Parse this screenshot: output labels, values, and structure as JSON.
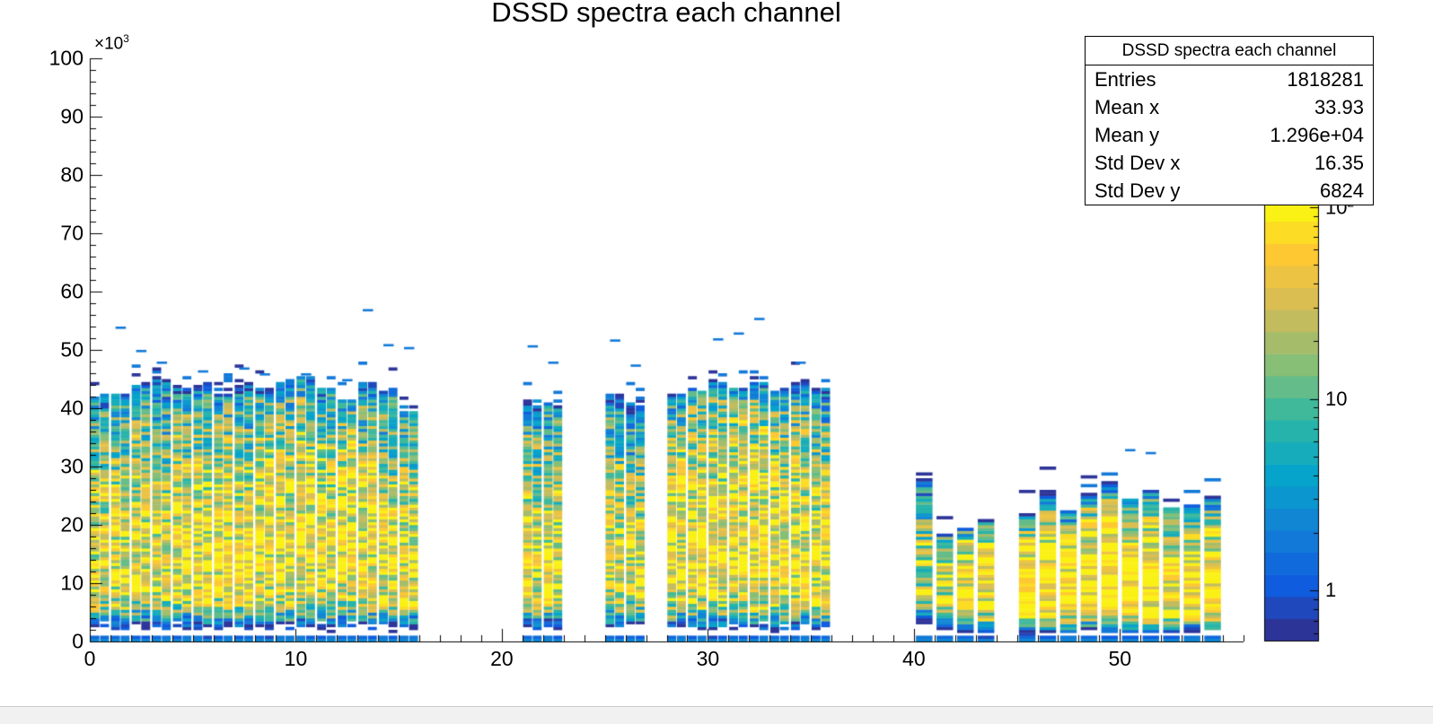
{
  "chart_data": {
    "type": "heatmap",
    "title": "DSSD spectra each channel",
    "xlabel": "",
    "ylabel": "",
    "x_axis": {
      "min": 0,
      "max": 56,
      "major_ticks": [
        0,
        10,
        20,
        30,
        40,
        50
      ],
      "minor_tick_step": 1
    },
    "y_axis": {
      "min": 0,
      "max": 100,
      "unit_exponent": {
        "base": "×10",
        "exp": "3"
      },
      "major_ticks": [
        0,
        10,
        20,
        30,
        40,
        50,
        60,
        70,
        80,
        90,
        100
      ],
      "minor_tick_step": 2
    },
    "z_axis": {
      "scale": "log",
      "min": 0.55,
      "max": 110,
      "ticks": [
        {
          "value": 1,
          "base": "1",
          "exp": ""
        },
        {
          "value": 10,
          "base": "10",
          "exp": ""
        },
        {
          "value": 100,
          "base": "10",
          "exp": "2"
        }
      ]
    },
    "palette": [
      "#352a87",
      "#0f5cde",
      "#1480d6",
      "#06a4ca",
      "#2eb7a4",
      "#87bf77",
      "#d1bb59",
      "#fec832",
      "#f9fb0e"
    ],
    "palette_levels": 20,
    "stats": {
      "name": "DSSD spectra each channel",
      "rows": [
        {
          "label": "Entries",
          "value": "1818281"
        },
        {
          "label": "Mean x",
          "value": "33.93"
        },
        {
          "label": "Mean y",
          "value": "1.296e+04"
        },
        {
          "label": "Std Dev x",
          "value": "16.35"
        },
        {
          "label": "Std Dev y",
          "value": "6824"
        }
      ]
    },
    "channels": [
      {
        "x": 0,
        "max": 42,
        "peak": 13,
        "amp": 48,
        "fall": 2.4,
        "low": 5,
        "out": []
      },
      {
        "x": 1,
        "max": 43,
        "peak": 13,
        "amp": 52,
        "fall": 2.4,
        "low": 5,
        "out": [
          54
        ]
      },
      {
        "x": 2,
        "max": 44,
        "peak": 14,
        "amp": 55,
        "fall": 2.4,
        "low": 5,
        "out": [
          50
        ]
      },
      {
        "x": 3,
        "max": 45,
        "peak": 13,
        "amp": 50,
        "fall": 2.4,
        "low": 5,
        "out": [
          48
        ]
      },
      {
        "x": 4,
        "max": 43,
        "peak": 14,
        "amp": 55,
        "fall": 2.4,
        "low": 5,
        "out": []
      },
      {
        "x": 5,
        "max": 44,
        "peak": 13,
        "amp": 58,
        "fall": 2.4,
        "low": 5,
        "out": [
          46.5
        ]
      },
      {
        "x": 6,
        "max": 42,
        "peak": 14,
        "amp": 60,
        "fall": 2.4,
        "low": 5,
        "out": []
      },
      {
        "x": 7,
        "max": 44,
        "peak": 13,
        "amp": 55,
        "fall": 2.4,
        "low": 4.5,
        "out": [
          47
        ]
      },
      {
        "x": 8,
        "max": 43,
        "peak": 15,
        "amp": 58,
        "fall": 2.4,
        "low": 5,
        "out": [
          46
        ]
      },
      {
        "x": 9,
        "max": 44,
        "peak": 14,
        "amp": 62,
        "fall": 2.4,
        "low": 5,
        "out": []
      },
      {
        "x": 10,
        "max": 45,
        "peak": 15,
        "amp": 62,
        "fall": 2.4,
        "low": 5,
        "out": [
          46
        ]
      },
      {
        "x": 11,
        "max": 43,
        "peak": 14,
        "amp": 58,
        "fall": 2.4,
        "low": 4.5,
        "out": []
      },
      {
        "x": 12,
        "max": 41,
        "peak": 15,
        "amp": 62,
        "fall": 2.4,
        "low": 5,
        "out": [
          45
        ]
      },
      {
        "x": 13,
        "max": 44,
        "peak": 14,
        "amp": 58,
        "fall": 2.4,
        "low": 5,
        "out": [
          57
        ]
      },
      {
        "x": 14,
        "max": 43,
        "peak": 13,
        "amp": 55,
        "fall": 2.4,
        "low": 5,
        "out": [
          51
        ]
      },
      {
        "x": 15,
        "max": 40,
        "peak": 13,
        "amp": 50,
        "fall": 2.4,
        "low": 5,
        "out": [
          50.5
        ]
      },
      {
        "x": 21,
        "max": 41,
        "peak": 13,
        "amp": 46,
        "fall": 2.4,
        "low": 4.5,
        "out": [
          50.8
        ]
      },
      {
        "x": 22,
        "max": 41,
        "peak": 13,
        "amp": 44,
        "fall": 2.4,
        "low": 4.5,
        "out": [
          48
        ]
      },
      {
        "x": 25,
        "max": 42,
        "peak": 13,
        "amp": 42,
        "fall": 2.4,
        "low": 4.5,
        "out": [
          51.8
        ]
      },
      {
        "x": 26,
        "max": 41,
        "peak": 12,
        "amp": 38,
        "fall": 2.4,
        "low": 4.5,
        "out": [
          47.5
        ]
      },
      {
        "x": 28,
        "max": 42,
        "peak": 14,
        "amp": 58,
        "fall": 2.4,
        "low": 4.5,
        "out": []
      },
      {
        "x": 29,
        "max": 43,
        "peak": 15,
        "amp": 62,
        "fall": 2.4,
        "low": 4.5,
        "out": []
      },
      {
        "x": 30,
        "max": 44,
        "peak": 15,
        "amp": 66,
        "fall": 2.4,
        "low": 4.5,
        "out": [
          52
        ]
      },
      {
        "x": 31,
        "max": 43,
        "peak": 16,
        "amp": 66,
        "fall": 2.4,
        "low": 4.5,
        "out": [
          53
        ]
      },
      {
        "x": 32,
        "max": 44,
        "peak": 15,
        "amp": 66,
        "fall": 2.4,
        "low": 4.5,
        "out": [
          55.5
        ]
      },
      {
        "x": 33,
        "max": 43,
        "peak": 14,
        "amp": 62,
        "fall": 2.4,
        "low": 4.5,
        "out": []
      },
      {
        "x": 34,
        "max": 44,
        "peak": 14,
        "amp": 60,
        "fall": 2.4,
        "low": 4.5,
        "out": [
          48
        ]
      },
      {
        "x": 35,
        "max": 43,
        "peak": 13,
        "amp": 55,
        "fall": 2.4,
        "low": 4.5,
        "out": []
      },
      {
        "x": 40,
        "max": 27,
        "peak": 12,
        "amp": 26,
        "fall": 4.5,
        "low": 2,
        "out": []
      },
      {
        "x": 41,
        "max": 18,
        "peak": 11,
        "amp": 34,
        "fall": 4.5,
        "low": 2,
        "out": []
      },
      {
        "x": 42,
        "max": 19,
        "peak": 10,
        "amp": 60,
        "fall": 4.5,
        "low": 2,
        "out": []
      },
      {
        "x": 43,
        "max": 20,
        "peak": 9,
        "amp": 95,
        "fall": 4.5,
        "low": 2,
        "out": []
      },
      {
        "x": 45,
        "max": 22,
        "peak": 8,
        "amp": 160,
        "fall": 4.5,
        "low": 2,
        "out": []
      },
      {
        "x": 46,
        "max": 26,
        "peak": 9,
        "amp": 120,
        "fall": 4.5,
        "low": 2,
        "out": []
      },
      {
        "x": 47,
        "max": 22,
        "peak": 9,
        "amp": 100,
        "fall": 4.5,
        "low": 2,
        "out": []
      },
      {
        "x": 48,
        "max": 25,
        "peak": 10,
        "amp": 115,
        "fall": 4.5,
        "low": 2,
        "out": []
      },
      {
        "x": 49,
        "max": 27,
        "peak": 10,
        "amp": 130,
        "fall": 4.5,
        "low": 2,
        "out": []
      },
      {
        "x": 50,
        "max": 24,
        "peak": 10,
        "amp": 120,
        "fall": 4.5,
        "low": 2,
        "out": [
          33
        ]
      },
      {
        "x": 51,
        "max": 26,
        "peak": 10,
        "amp": 115,
        "fall": 4.5,
        "low": 2,
        "out": [
          32.5
        ]
      },
      {
        "x": 52,
        "max": 23,
        "peak": 9,
        "amp": 105,
        "fall": 4.5,
        "low": 2,
        "out": []
      },
      {
        "x": 53,
        "max": 23,
        "peak": 9,
        "amp": 110,
        "fall": 4.5,
        "low": 2,
        "out": []
      },
      {
        "x": 54,
        "max": 25,
        "peak": 9,
        "amp": 125,
        "fall": 4.5,
        "low": 2,
        "out": []
      }
    ]
  }
}
